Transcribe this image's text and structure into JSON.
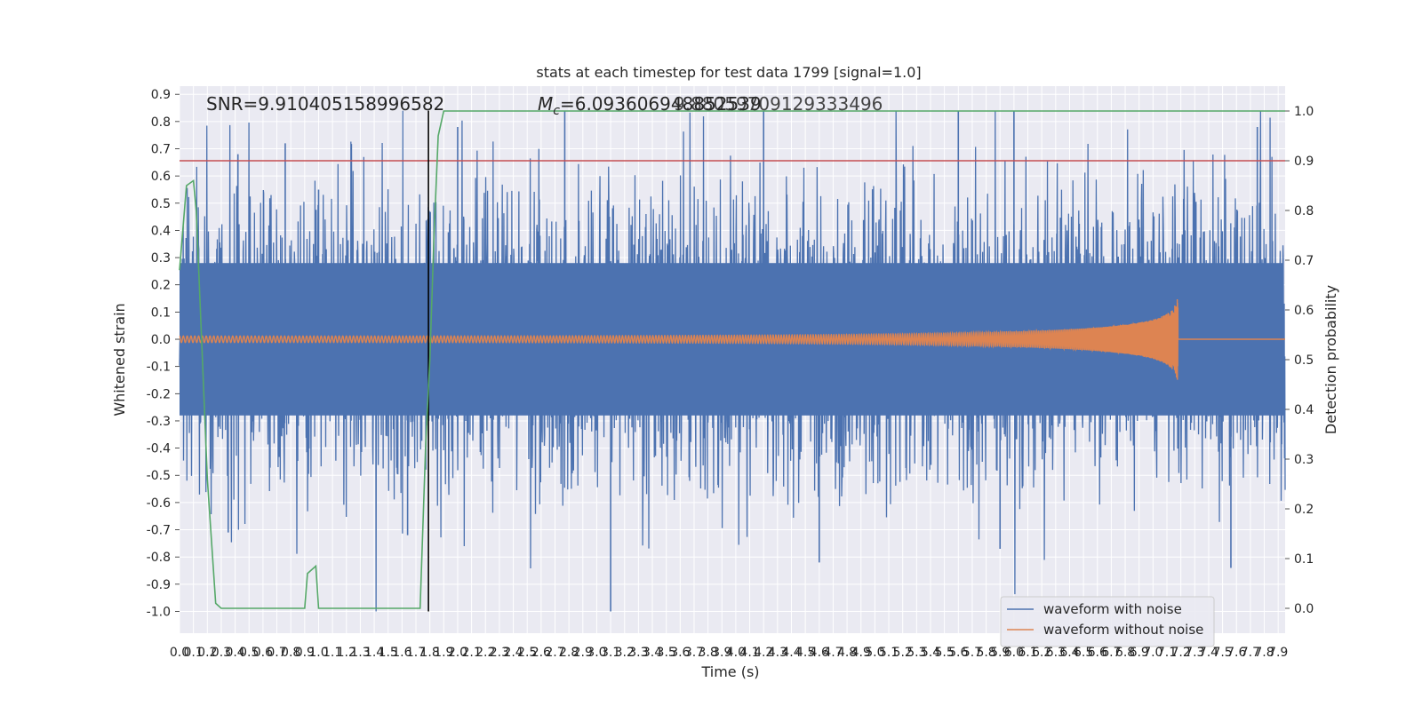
{
  "chart_data": {
    "type": "line",
    "title": "stats at each timestep for test data 1799 [signal=1.0]",
    "xlabel": "Time (s)",
    "ylabel": "Whitened strain",
    "ylabel_right": "Detection probability",
    "xlim": [
      0.0,
      7.95
    ],
    "ylim": [
      -1.08,
      0.93
    ],
    "ylim_right": [
      -0.05,
      1.05
    ],
    "grid": true,
    "legend_position": "lower-right",
    "x_tick_step": 0.1,
    "y_ticks": [
      -1.0,
      -0.9,
      -0.8,
      -0.7,
      -0.6,
      -0.5,
      -0.4,
      -0.3,
      -0.2,
      -0.1,
      0.0,
      0.1,
      0.2,
      0.3,
      0.4,
      0.5,
      0.6,
      0.7,
      0.8,
      0.9
    ],
    "y_ticks_right": [
      0.0,
      0.1,
      0.2,
      0.3,
      0.4,
      0.5,
      0.6,
      0.7,
      0.8,
      0.9,
      1.0
    ],
    "annotations": {
      "snr": "SNR=9.910405158996582",
      "mc_prefix": "M",
      "mc_sub": "c",
      "mc_value": "=6.093606948852539",
      "mc_overlap": "9.88059709129333496"
    },
    "threshold": {
      "value": 0.9,
      "axis": "right",
      "color": "#c44e52"
    },
    "event_marker": {
      "x": 1.79,
      "y_range": [
        -1.0,
        0.84
      ],
      "color": "#000000"
    },
    "series": [
      {
        "name": "waveform with noise",
        "color": "#4c72b0",
        "kind": "noise",
        "min": -1.0,
        "max": 0.84,
        "typical_amplitude": 0.32
      },
      {
        "name": "waveform without noise",
        "color": "#dd8452",
        "kind": "chirp",
        "merger_time": 7.18,
        "start_amplitude": 0.012,
        "peak_amplitude": 0.24
      },
      {
        "name": "detection probability",
        "color": "#55a868",
        "axis": "right",
        "kind": "line",
        "legend": false,
        "x": [
          0.0,
          0.05,
          0.1,
          0.12,
          0.15,
          0.2,
          0.26,
          0.3,
          0.35,
          0.4,
          0.5,
          0.6,
          0.63,
          0.68,
          0.74,
          0.8,
          0.9,
          1.0,
          1.2,
          1.4,
          1.5,
          1.6,
          1.7,
          1.73,
          1.77,
          1.8,
          1.83,
          1.86,
          1.9,
          2.0,
          3.0,
          4.0,
          5.0,
          6.0,
          7.0,
          7.95
        ],
        "y": [
          0.68,
          0.85,
          0.86,
          0.8,
          0.6,
          0.26,
          0.01,
          0.0,
          0.0,
          0.0,
          0.0,
          0.0,
          0.0,
          0.0,
          0.0,
          0.0,
          0.0,
          0.0,
          0.0,
          0.0,
          0.0,
          0.0,
          0.0,
          0.0,
          0.33,
          0.5,
          0.75,
          0.95,
          1.0,
          1.0,
          1.0,
          1.0,
          1.0,
          1.0,
          1.0,
          1.0
        ],
        "x_bump": [
          0.92,
          0.98,
          1.02
        ],
        "y_bump": [
          0.07,
          0.085,
          0.0
        ]
      }
    ]
  }
}
